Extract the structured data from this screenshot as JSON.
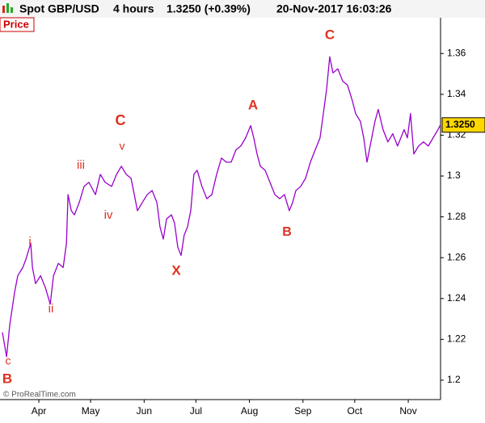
{
  "chart_data": {
    "type": "line",
    "instrument": "Spot GBP/USD",
    "timeframe": "4 hours",
    "quote": "1.3250 (+0.39%)",
    "datetime": "20-Nov-2017 16:03:26",
    "panel_label": "Price",
    "copyright": "© ProRealTime.com",
    "color": "#9900cc",
    "last_price": {
      "value": 1.325,
      "label": "1.3250"
    },
    "xlim": [
      68.5,
      323.7
    ],
    "ylim": [
      1.1905,
      1.3783
    ],
    "xticks": [
      {
        "value": 91,
        "label": "Apr"
      },
      {
        "value": 121,
        "label": "May"
      },
      {
        "value": 152,
        "label": "Jun"
      },
      {
        "value": 182,
        "label": "Jul"
      },
      {
        "value": 213,
        "label": "Aug"
      },
      {
        "value": 244,
        "label": "Sep"
      },
      {
        "value": 274,
        "label": "Oct"
      },
      {
        "value": 305,
        "label": "Nov"
      }
    ],
    "yticks": [
      1.2,
      1.22,
      1.24,
      1.26,
      1.28,
      1.3,
      1.32,
      1.34,
      1.36
    ],
    "x": [
      69.9,
      72.3,
      74.2,
      77.0,
      78.8,
      81.7,
      83.5,
      86.3,
      87.3,
      89.1,
      92.0,
      94.8,
      97.6,
      99.5,
      102.3,
      105.1,
      107.0,
      107.9,
      109.8,
      111.6,
      114.4,
      117.2,
      120.0,
      123.8,
      126.6,
      129.4,
      133.2,
      136.0,
      138.8,
      141.6,
      144.4,
      146.3,
      148.1,
      150.9,
      153.8,
      156.6,
      159.4,
      161.2,
      163.1,
      165.0,
      167.8,
      169.6,
      171.5,
      173.4,
      175.2,
      177.1,
      179.0,
      180.8,
      182.7,
      185.5,
      188.3,
      191.2,
      194.0,
      196.8,
      199.6,
      202.4,
      205.2,
      208.0,
      210.8,
      213.7,
      215.5,
      217.4,
      219.3,
      222.1,
      224.9,
      227.7,
      230.5,
      233.3,
      236.1,
      238.0,
      239.9,
      242.7,
      245.5,
      248.3,
      251.1,
      253.9,
      255.8,
      257.7,
      259.5,
      261.4,
      264.2,
      267.0,
      269.8,
      272.7,
      274.5,
      277.3,
      279.2,
      281.1,
      282.9,
      285.7,
      287.6,
      290.4,
      293.2,
      296.0,
      298.8,
      300.7,
      302.6,
      304.5,
      306.3,
      308.2,
      311.0,
      313.8,
      316.6,
      319.4,
      322.2,
      323.6
    ],
    "values": [
      1.2234,
      1.2115,
      1.2274,
      1.2433,
      1.2512,
      1.2552,
      1.2592,
      1.2671,
      1.2552,
      1.2473,
      1.2512,
      1.2453,
      1.2373,
      1.2512,
      1.2572,
      1.2552,
      1.2671,
      1.2909,
      1.283,
      1.281,
      1.287,
      1.2949,
      1.2969,
      1.2909,
      1.3008,
      1.2969,
      1.2949,
      1.3008,
      1.3048,
      1.3008,
      1.2989,
      1.2909,
      1.283,
      1.287,
      1.2909,
      1.2929,
      1.287,
      1.275,
      1.2691,
      1.279,
      1.281,
      1.277,
      1.2651,
      1.2611,
      1.2711,
      1.275,
      1.283,
      1.3008,
      1.3028,
      1.2949,
      1.2889,
      1.2909,
      1.3008,
      1.3088,
      1.3068,
      1.3068,
      1.3128,
      1.3147,
      1.3187,
      1.3247,
      1.3187,
      1.3108,
      1.3048,
      1.3028,
      1.2969,
      1.2909,
      1.2889,
      1.2909,
      1.283,
      1.287,
      1.2929,
      1.2949,
      1.2989,
      1.3068,
      1.3128,
      1.3187,
      1.3306,
      1.3425,
      1.3584,
      1.3505,
      1.3525,
      1.3465,
      1.3445,
      1.3366,
      1.3306,
      1.3267,
      1.3187,
      1.3068,
      1.3147,
      1.3267,
      1.3326,
      1.3227,
      1.3167,
      1.3207,
      1.3147,
      1.3187,
      1.3227,
      1.3187,
      1.3306,
      1.3108,
      1.3147,
      1.3167,
      1.3147,
      1.3187,
      1.3227,
      1.325
    ],
    "annotations": [
      "c",
      "B",
      "i",
      "ii",
      "iii",
      "iv",
      "v",
      "C",
      "X",
      "A",
      "B",
      "C"
    ]
  }
}
